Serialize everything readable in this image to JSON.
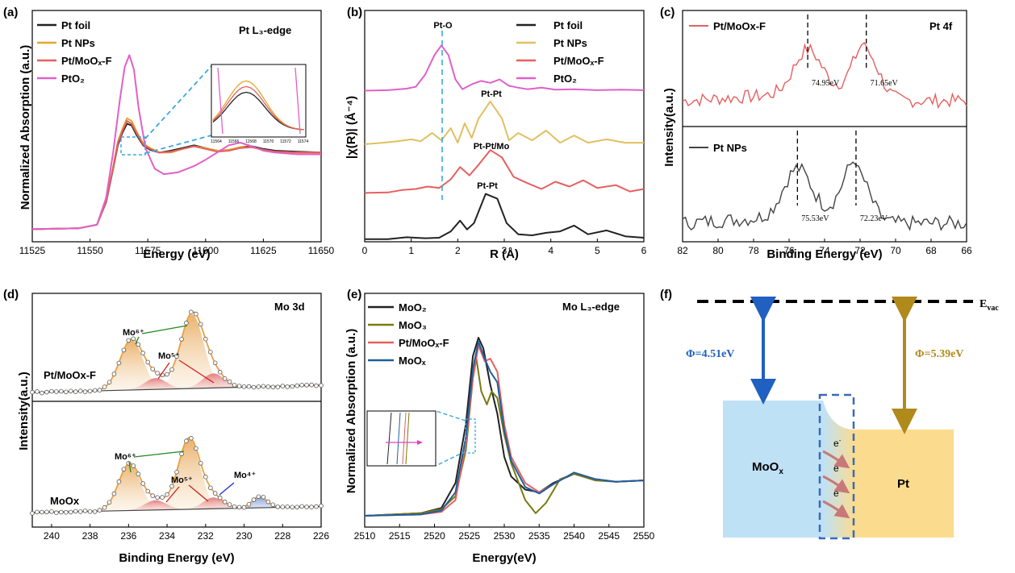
{
  "chart_data": [
    {
      "id": "a",
      "type": "line",
      "panel_label": "(a)",
      "title": "Pt L₃-edge",
      "xlabel": "Energy (eV)",
      "ylabel": "Normalized Absorption (a.u.)",
      "xlim": [
        11525,
        11650
      ],
      "ylim": [
        0,
        2.1
      ],
      "xticks": [
        11525,
        11550,
        11575,
        11600,
        11625,
        11650
      ],
      "series": [
        {
          "name": "Pt foil",
          "color": "#222222",
          "x": [
            11525,
            11545,
            11553,
            11557,
            11560,
            11562,
            11564,
            11566,
            11568,
            11570,
            11573,
            11576,
            11580,
            11585,
            11590,
            11595,
            11600,
            11605,
            11610,
            11615,
            11620,
            11625,
            11630,
            11640,
            11650
          ],
          "y": [
            0.05,
            0.06,
            0.1,
            0.35,
            0.72,
            0.98,
            1.12,
            1.22,
            1.2,
            1.1,
            0.98,
            0.93,
            0.9,
            0.92,
            0.95,
            0.98,
            0.95,
            0.92,
            0.92,
            0.96,
            0.97,
            0.94,
            0.92,
            0.91,
            0.9
          ]
        },
        {
          "name": "Pt NPs",
          "color": "#E0A82E",
          "x": [
            11525,
            11545,
            11553,
            11557,
            11560,
            11562,
            11564,
            11566,
            11568,
            11570,
            11573,
            11576,
            11580,
            11585,
            11590,
            11595,
            11600,
            11605,
            11610,
            11615,
            11620,
            11625,
            11630,
            11640,
            11650
          ],
          "y": [
            0.05,
            0.06,
            0.1,
            0.36,
            0.74,
            1.02,
            1.16,
            1.28,
            1.25,
            1.14,
            1.0,
            0.95,
            0.9,
            0.9,
            0.94,
            0.97,
            0.95,
            0.92,
            0.93,
            0.96,
            0.96,
            0.93,
            0.91,
            0.9,
            0.9
          ]
        },
        {
          "name": "Pt/MoOₓ-F",
          "color": "#E5605F",
          "x": [
            11525,
            11545,
            11553,
            11557,
            11560,
            11562,
            11564,
            11566,
            11568,
            11570,
            11573,
            11576,
            11580,
            11585,
            11590,
            11595,
            11600,
            11605,
            11610,
            11615,
            11620,
            11625,
            11630,
            11640,
            11650
          ],
          "y": [
            0.05,
            0.06,
            0.1,
            0.36,
            0.73,
            1.0,
            1.14,
            1.25,
            1.22,
            1.12,
            0.99,
            0.94,
            0.9,
            0.91,
            0.94,
            0.97,
            0.94,
            0.91,
            0.92,
            0.95,
            0.96,
            0.93,
            0.91,
            0.9,
            0.9
          ]
        },
        {
          "name": "PtO₂",
          "color": "#E060C8",
          "x": [
            11525,
            11545,
            11553,
            11557,
            11560,
            11563,
            11565,
            11567,
            11569,
            11571,
            11574,
            11578,
            11582,
            11588,
            11595,
            11600,
            11605,
            11610,
            11615,
            11620,
            11625,
            11630,
            11640,
            11650
          ],
          "y": [
            0.05,
            0.06,
            0.1,
            0.4,
            0.9,
            1.5,
            1.85,
            1.98,
            1.82,
            1.4,
            0.95,
            0.72,
            0.66,
            0.68,
            0.75,
            0.82,
            0.9,
            0.98,
            1.01,
            0.97,
            0.92,
            0.9,
            0.88,
            0.88
          ]
        }
      ],
      "inset": {
        "tick_labels": [
          "11564",
          "11566",
          "11568",
          "11570",
          "11572",
          "11574"
        ]
      }
    },
    {
      "id": "b",
      "type": "line",
      "panel_label": "(b)",
      "xlabel": "R (Å)",
      "ylabel": "|χ(R)| (Å⁻⁴)",
      "xlim": [
        0,
        6
      ],
      "ylim": [
        0,
        4.6
      ],
      "xticks": [
        0,
        1,
        2,
        3,
        4,
        5,
        6
      ],
      "series": [
        {
          "name": "Pt foil",
          "color": "#222222",
          "offset": 0,
          "x": [
            0,
            0.5,
            0.9,
            1.1,
            1.3,
            1.6,
            1.85,
            2.05,
            2.2,
            2.35,
            2.6,
            2.85,
            3.05,
            3.3,
            3.6,
            3.9,
            4.2,
            4.5,
            4.8,
            5.2,
            5.6,
            6.0
          ],
          "y": [
            0.02,
            0.02,
            0.06,
            0.05,
            0.04,
            0.05,
            0.18,
            0.4,
            0.22,
            0.35,
            0.95,
            0.85,
            0.35,
            0.12,
            0.1,
            0.15,
            0.18,
            0.3,
            0.12,
            0.2,
            0.08,
            0.05
          ]
        },
        {
          "name": "Pt/MoOₓ-F",
          "color": "#E5605F",
          "offset": 0.95,
          "x": [
            0,
            0.5,
            0.8,
            1.1,
            1.35,
            1.6,
            1.85,
            2.05,
            2.25,
            2.45,
            2.7,
            2.95,
            3.2,
            3.5,
            3.8,
            4.1,
            4.4,
            4.7,
            5.0,
            5.4,
            5.7,
            6.0
          ],
          "y": [
            0.02,
            0.03,
            0.08,
            0.1,
            0.15,
            0.12,
            0.3,
            0.55,
            0.38,
            0.6,
            0.9,
            0.75,
            0.35,
            0.22,
            0.1,
            0.25,
            0.15,
            0.28,
            0.12,
            0.18,
            0.05,
            0.1
          ]
        },
        {
          "name": "Pt NPs",
          "color": "#E0C060",
          "offset": 1.95,
          "x": [
            0,
            0.4,
            0.7,
            1.0,
            1.2,
            1.45,
            1.65,
            1.85,
            2.0,
            2.15,
            2.3,
            2.45,
            2.7,
            2.95,
            3.1,
            3.3,
            3.6,
            3.9,
            4.2,
            4.5,
            4.8,
            5.2,
            5.6,
            6.0
          ],
          "y": [
            0.02,
            0.05,
            0.08,
            0.12,
            0.08,
            0.25,
            0.1,
            0.35,
            0.05,
            0.45,
            0.15,
            0.55,
            0.9,
            0.55,
            0.1,
            0.25,
            0.1,
            0.3,
            0.05,
            0.2,
            0.05,
            0.12,
            0.05,
            0.05
          ]
        },
        {
          "name": "PtO₂",
          "color": "#E060C8",
          "offset": 3.05,
          "x": [
            0,
            0.5,
            0.9,
            1.1,
            1.3,
            1.5,
            1.65,
            1.8,
            1.95,
            2.1,
            2.3,
            2.5,
            2.7,
            2.9,
            3.1,
            3.3,
            3.5,
            3.8,
            4.1,
            4.5,
            5.0,
            5.5,
            6.0
          ],
          "y": [
            0.02,
            0.03,
            0.06,
            0.1,
            0.35,
            0.75,
            0.95,
            0.75,
            0.25,
            0.05,
            0.15,
            0.22,
            0.18,
            0.25,
            0.12,
            0.08,
            0.05,
            0.08,
            0.04,
            0.05,
            0.03,
            0.04,
            0.03
          ]
        }
      ],
      "annotations": [
        "Pt-O",
        "Pt-Pt",
        "Pt-Pt/Mo",
        "Pt-Pt"
      ]
    },
    {
      "id": "c",
      "type": "line",
      "panel_label": "(c)",
      "title": "Pt 4f",
      "xlabel": "Binding Energy (eV)",
      "ylabel": "Intensity(a.u.)",
      "xlim": [
        82,
        66
      ],
      "xticks": [
        82,
        80,
        78,
        76,
        74,
        72,
        70,
        68,
        66
      ],
      "series": [
        {
          "name": "Pt/MoOx-F",
          "color": "#E5605F",
          "peaks": [
            74.95,
            71.65
          ]
        },
        {
          "name": "Pt NPs",
          "color": "#444444",
          "peaks": [
            75.53,
            72.23
          ]
        }
      ],
      "peak_labels": [
        "74.95eV",
        "71.65eV",
        "75.53eV",
        "72.23eV"
      ]
    },
    {
      "id": "d",
      "type": "line",
      "panel_label": "(d)",
      "title": "Mo 3d",
      "xlabel": "Binding Energy (eV)",
      "ylabel": "Intensity(a.u.)",
      "xlim": [
        241,
        226
      ],
      "xticks": [
        240,
        238,
        236,
        234,
        232,
        230,
        228,
        226
      ],
      "samples": [
        "Pt/MoOx-F",
        "MoOx"
      ],
      "components": [
        "Mo⁶⁺",
        "Mo⁵⁺",
        "Mo⁴⁺"
      ],
      "component_colors": [
        "#1F8A1F",
        "#D02020",
        "#2030C0"
      ]
    },
    {
      "id": "e",
      "type": "line",
      "panel_label": "(e)",
      "title": "Mo L₃-edge",
      "xlabel": "Energy(eV)",
      "ylabel": "Normalized Absorption (a.u.)",
      "xlim": [
        2510,
        2550
      ],
      "ylim": [
        0,
        1.6
      ],
      "xticks": [
        2510,
        2515,
        2520,
        2525,
        2530,
        2535,
        2540,
        2545,
        2550
      ],
      "series": [
        {
          "name": "MoO₂",
          "color": "#222222",
          "x": [
            2510,
            2518,
            2521,
            2523,
            2524.5,
            2525.5,
            2526.3,
            2527,
            2528,
            2529,
            2530,
            2531,
            2533,
            2535,
            2537,
            2540,
            2543,
            2546,
            2550
          ],
          "y": [
            0.0,
            0.02,
            0.06,
            0.25,
            0.7,
            1.22,
            1.36,
            1.28,
            1.0,
            0.78,
            0.45,
            0.3,
            0.2,
            0.18,
            0.25,
            0.32,
            0.28,
            0.26,
            0.27
          ]
        },
        {
          "name": "MoO₃",
          "color": "#7A7A10",
          "x": [
            2510,
            2518,
            2521,
            2523,
            2524.5,
            2525.5,
            2526,
            2526.7,
            2527.5,
            2528.2,
            2529,
            2530,
            2531,
            2533,
            2534.5,
            2536,
            2538,
            2540,
            2543,
            2546,
            2550
          ],
          "y": [
            0.0,
            0.02,
            0.05,
            0.15,
            0.5,
            1.05,
            1.2,
            0.95,
            0.85,
            0.95,
            0.9,
            0.62,
            0.4,
            0.12,
            0.02,
            0.1,
            0.28,
            0.32,
            0.27,
            0.26,
            0.27
          ]
        },
        {
          "name": "Pt/MoOₓ-F",
          "color": "#E5605F",
          "x": [
            2510,
            2518,
            2521,
            2523,
            2524.5,
            2525.5,
            2526.3,
            2527.2,
            2528,
            2529,
            2530,
            2531,
            2533,
            2535,
            2537,
            2540,
            2543,
            2546,
            2550
          ],
          "y": [
            0.0,
            0.01,
            0.03,
            0.12,
            0.55,
            1.05,
            1.3,
            1.18,
            1.2,
            1.1,
            0.7,
            0.45,
            0.25,
            0.18,
            0.24,
            0.33,
            0.28,
            0.26,
            0.27
          ]
        },
        {
          "name": "MoOₓ",
          "color": "#1F5F9F",
          "x": [
            2510,
            2518,
            2521,
            2523,
            2524.5,
            2525.5,
            2526.3,
            2527.2,
            2528,
            2529,
            2530,
            2531,
            2533,
            2535,
            2537,
            2540,
            2543,
            2546,
            2550
          ],
          "y": [
            0.0,
            0.01,
            0.04,
            0.18,
            0.6,
            1.12,
            1.33,
            1.2,
            1.1,
            1.02,
            0.65,
            0.42,
            0.22,
            0.17,
            0.24,
            0.33,
            0.28,
            0.26,
            0.27
          ]
        }
      ]
    },
    {
      "id": "f",
      "type": "diagram",
      "panel_label": "(f)",
      "vacuum_label": "E",
      "vacuum_sub": "vac",
      "left_material": "MoO",
      "left_material_sub": "x",
      "right_material": "Pt",
      "left_work_function": "Φ=4.51eV",
      "right_work_function": "Φ=5.39eV",
      "electron": "e",
      "electron_sup": "-"
    }
  ]
}
